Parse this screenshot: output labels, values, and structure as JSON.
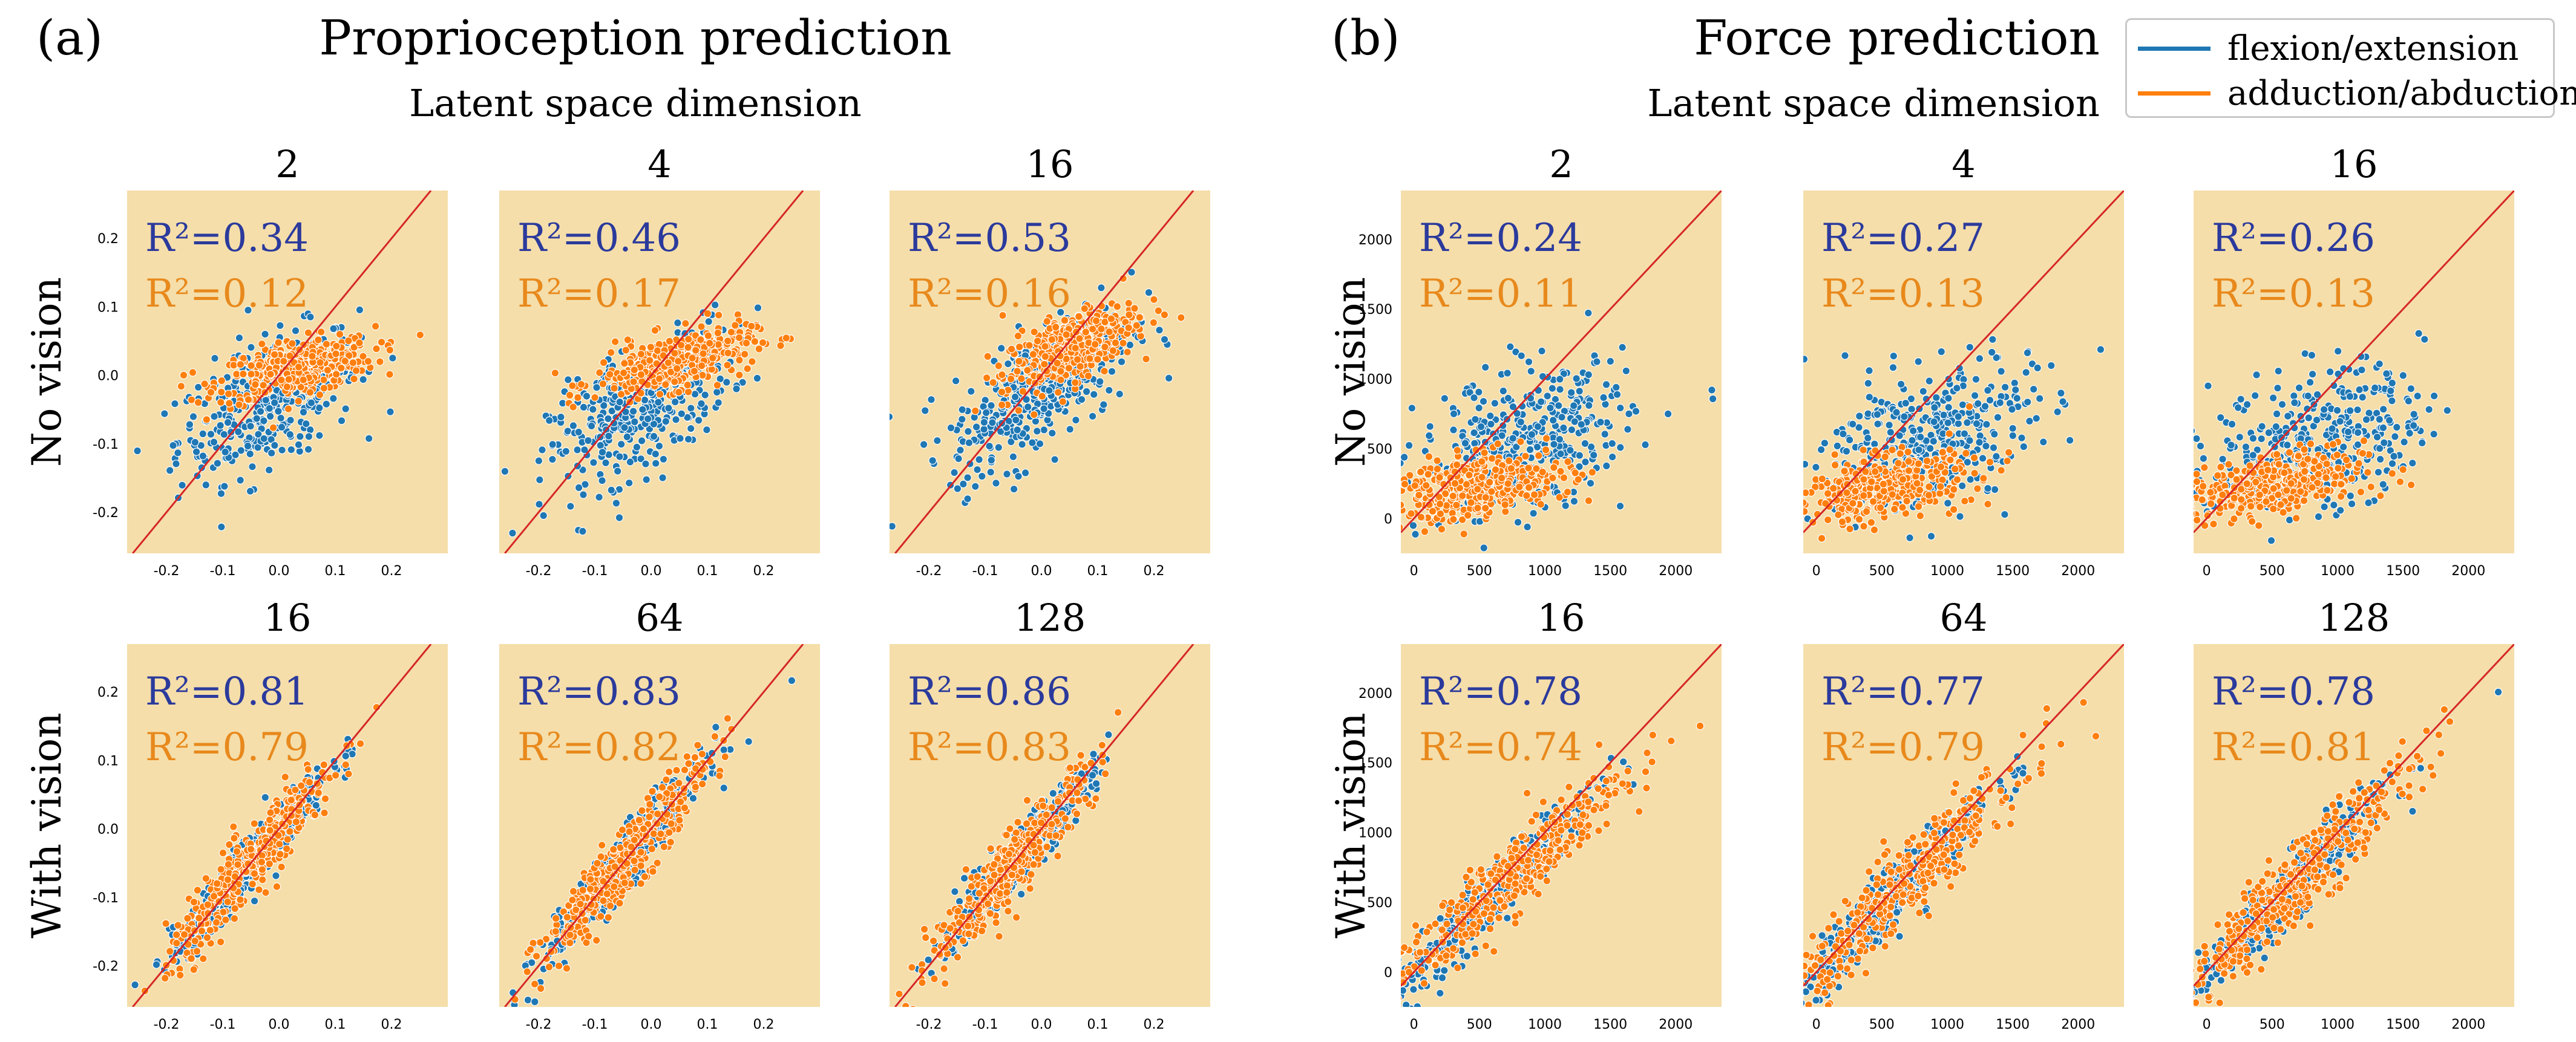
{
  "panels": [
    {
      "label": "(a)",
      "title": "Proprioception prediction",
      "subtitle": "Latent space dimension"
    },
    {
      "label": "(b)",
      "title": "Force prediction",
      "subtitle": "Latent space dimension"
    }
  ],
  "legend": {
    "items": [
      {
        "label": "flexion/extension",
        "color": "#1f77b4"
      },
      {
        "label": "adduction/abduction",
        "color": "#ff7f0e"
      }
    ]
  },
  "colors": {
    "background": "#f5deaa",
    "flexion": "#1f77b4",
    "adduction": "#ff7f0e",
    "identity_line": "#d62728",
    "r2_blue_text": "#2b3a9c",
    "r2_orange_text": "#e8891c"
  },
  "chart_data": [
    {
      "type": "scatter",
      "panel": "a",
      "row_label": "No vision",
      "latent_dim": "2",
      "xlim": [
        -0.27,
        0.3
      ],
      "ylim": [
        -0.26,
        0.27
      ],
      "xticks": [
        "-0.2",
        "-0.1",
        "0.0",
        "0.1",
        "0.2"
      ],
      "yticks": [
        "0.2",
        "0.1",
        "0.0",
        "-0.1",
        "-0.2"
      ],
      "r2": [
        "R²=0.34",
        "R²=0.12"
      ],
      "series": [
        {
          "name": "flexion/extension",
          "center": [
            -0.02,
            -0.04
          ],
          "spread": [
            0.08,
            0.045
          ],
          "slope": 0.35
        },
        {
          "name": "adduction/abduction",
          "center": [
            0.03,
            0.01
          ],
          "spread": [
            0.07,
            0.02
          ],
          "slope": 0.15
        }
      ]
    },
    {
      "type": "scatter",
      "panel": "a",
      "row_label": "No vision",
      "latent_dim": "4",
      "xlim": [
        -0.27,
        0.3
      ],
      "ylim": [
        -0.26,
        0.27
      ],
      "xticks": [
        "-0.2",
        "-0.1",
        "0.0",
        "0.1",
        "0.2"
      ],
      "yticks": [
        "0.2",
        "0.1",
        "0.0",
        "-0.1",
        "-0.2"
      ],
      "r2": [
        "R²=0.46",
        "R²=0.17"
      ],
      "series": [
        {
          "name": "flexion/extension",
          "center": [
            -0.02,
            -0.05
          ],
          "spread": [
            0.08,
            0.045
          ],
          "slope": 0.45
        },
        {
          "name": "adduction/abduction",
          "center": [
            0.04,
            0.02
          ],
          "spread": [
            0.07,
            0.02
          ],
          "slope": 0.2
        }
      ]
    },
    {
      "type": "scatter",
      "panel": "a",
      "row_label": "No vision",
      "latent_dim": "16",
      "xlim": [
        -0.27,
        0.3
      ],
      "ylim": [
        -0.26,
        0.27
      ],
      "xticks": [
        "-0.2",
        "-0.1",
        "0.0",
        "0.1",
        "0.2"
      ],
      "yticks": [
        "0.2",
        "0.1",
        "0.0",
        "-0.1",
        "-0.2"
      ],
      "r2": [
        "R²=0.53",
        "R²=0.16"
      ],
      "series": [
        {
          "name": "flexion/extension",
          "center": [
            0.0,
            -0.02
          ],
          "spread": [
            0.08,
            0.045
          ],
          "slope": 0.5
        },
        {
          "name": "adduction/abduction",
          "center": [
            0.05,
            0.04
          ],
          "spread": [
            0.06,
            0.025
          ],
          "slope": 0.35
        }
      ]
    },
    {
      "type": "scatter",
      "panel": "a",
      "row_label": "With vision",
      "latent_dim": "16",
      "xlim": [
        -0.27,
        0.3
      ],
      "ylim": [
        -0.26,
        0.27
      ],
      "xticks": [
        "-0.2",
        "-0.1",
        "0.0",
        "0.1",
        "0.2"
      ],
      "yticks": [
        "0.2",
        "0.1",
        "0.0",
        "-0.1",
        "-0.2"
      ],
      "r2": [
        "R²=0.81",
        "R²=0.79"
      ],
      "series": [
        {
          "name": "flexion/extension",
          "center": [
            -0.05,
            -0.05
          ],
          "spread": [
            0.07,
            0.02
          ],
          "slope": 0.95
        },
        {
          "name": "adduction/abduction",
          "center": [
            -0.05,
            -0.05
          ],
          "spread": [
            0.075,
            0.025
          ],
          "slope": 0.95
        }
      ]
    },
    {
      "type": "scatter",
      "panel": "a",
      "row_label": "With vision",
      "latent_dim": "64",
      "xlim": [
        -0.27,
        0.3
      ],
      "ylim": [
        -0.26,
        0.27
      ],
      "xticks": [
        "-0.2",
        "-0.1",
        "0.0",
        "0.1",
        "0.2"
      ],
      "yticks": [
        "0.2",
        "0.1",
        "0.0",
        "-0.1",
        "-0.2"
      ],
      "r2": [
        "R²=0.83",
        "R²=0.82"
      ],
      "series": [
        {
          "name": "flexion/extension",
          "center": [
            -0.05,
            -0.05
          ],
          "spread": [
            0.07,
            0.02
          ],
          "slope": 0.95
        },
        {
          "name": "adduction/abduction",
          "center": [
            -0.05,
            -0.05
          ],
          "spread": [
            0.075,
            0.025
          ],
          "slope": 0.95
        }
      ]
    },
    {
      "type": "scatter",
      "panel": "a",
      "row_label": "With vision",
      "latent_dim": "128",
      "xlim": [
        -0.27,
        0.3
      ],
      "ylim": [
        -0.26,
        0.27
      ],
      "xticks": [
        "-0.2",
        "-0.1",
        "0.0",
        "0.1",
        "0.2"
      ],
      "yticks": [
        "0.2",
        "0.1",
        "0.0",
        "-0.1",
        "-0.2"
      ],
      "r2": [
        "R²=0.86",
        "R²=0.83"
      ],
      "series": [
        {
          "name": "flexion/extension",
          "center": [
            -0.05,
            -0.05
          ],
          "spread": [
            0.07,
            0.02
          ],
          "slope": 0.95
        },
        {
          "name": "adduction/abduction",
          "center": [
            -0.05,
            -0.05
          ],
          "spread": [
            0.075,
            0.025
          ],
          "slope": 0.95
        }
      ]
    },
    {
      "type": "scatter",
      "panel": "b",
      "row_label": "No vision",
      "latent_dim": "2",
      "xlim": [
        -100,
        2350
      ],
      "ylim": [
        -250,
        2350
      ],
      "xticks": [
        "0",
        "500",
        "1000",
        "1500",
        "2000"
      ],
      "yticks": [
        "2000",
        "1500",
        "1000",
        "500",
        "0"
      ],
      "r2": [
        "R²=0.24",
        "R²=0.11"
      ],
      "series": [
        {
          "name": "flexion/extension",
          "center": [
            850,
            550
          ],
          "spread": [
            400,
            250
          ],
          "slope": 0.2
        },
        {
          "name": "adduction/abduction",
          "center": [
            500,
            230
          ],
          "spread": [
            350,
            110
          ],
          "slope": 0.15
        }
      ]
    },
    {
      "type": "scatter",
      "panel": "b",
      "row_label": "No vision",
      "latent_dim": "4",
      "xlim": [
        -100,
        2350
      ],
      "ylim": [
        -250,
        2350
      ],
      "xticks": [
        "0",
        "500",
        "1000",
        "1500",
        "2000"
      ],
      "yticks": [
        "2000",
        "1500",
        "1000",
        "500",
        "0"
      ],
      "r2": [
        "R²=0.27",
        "R²=0.13"
      ],
      "series": [
        {
          "name": "flexion/extension",
          "center": [
            850,
            580
          ],
          "spread": [
            400,
            250
          ],
          "slope": 0.25
        },
        {
          "name": "adduction/abduction",
          "center": [
            500,
            230
          ],
          "spread": [
            350,
            110
          ],
          "slope": 0.15
        }
      ]
    },
    {
      "type": "scatter",
      "panel": "b",
      "row_label": "No vision",
      "latent_dim": "16",
      "xlim": [
        -100,
        2350
      ],
      "ylim": [
        -250,
        2350
      ],
      "xticks": [
        "0",
        "500",
        "1000",
        "1500",
        "2000"
      ],
      "yticks": [
        "2000",
        "1500",
        "1000",
        "500",
        "0"
      ],
      "r2": [
        "R²=0.26",
        "R²=0.13"
      ],
      "series": [
        {
          "name": "flexion/extension",
          "center": [
            850,
            560
          ],
          "spread": [
            400,
            250
          ],
          "slope": 0.22
        },
        {
          "name": "adduction/abduction",
          "center": [
            500,
            230
          ],
          "spread": [
            350,
            110
          ],
          "slope": 0.15
        }
      ]
    },
    {
      "type": "scatter",
      "panel": "b",
      "row_label": "With vision",
      "latent_dim": "16",
      "xlim": [
        -100,
        2350
      ],
      "ylim": [
        -250,
        2350
      ],
      "xticks": [
        "0",
        "500",
        "1000",
        "1500",
        "2000"
      ],
      "yticks": [
        "2000",
        "1500",
        "1000",
        "500",
        "0"
      ],
      "r2": [
        "R²=0.78",
        "R²=0.74"
      ],
      "series": [
        {
          "name": "flexion/extension",
          "center": [
            600,
            560
          ],
          "spread": [
            380,
            110
          ],
          "slope": 0.95
        },
        {
          "name": "adduction/abduction",
          "center": [
            700,
            640
          ],
          "spread": [
            450,
            140
          ],
          "slope": 0.85
        }
      ]
    },
    {
      "type": "scatter",
      "panel": "b",
      "row_label": "With vision",
      "latent_dim": "64",
      "xlim": [
        -100,
        2350
      ],
      "ylim": [
        -250,
        2350
      ],
      "xticks": [
        "0",
        "500",
        "1000",
        "1500",
        "2000"
      ],
      "yticks": [
        "2000",
        "1500",
        "1000",
        "500",
        "0"
      ],
      "r2": [
        "R²=0.77",
        "R²=0.79"
      ],
      "series": [
        {
          "name": "flexion/extension",
          "center": [
            600,
            560
          ],
          "spread": [
            380,
            110
          ],
          "slope": 0.95
        },
        {
          "name": "adduction/abduction",
          "center": [
            700,
            640
          ],
          "spread": [
            450,
            140
          ],
          "slope": 0.9
        }
      ]
    },
    {
      "type": "scatter",
      "panel": "b",
      "row_label": "With vision",
      "latent_dim": "128",
      "xlim": [
        -100,
        2350
      ],
      "ylim": [
        -250,
        2350
      ],
      "xticks": [
        "0",
        "500",
        "1000",
        "1500",
        "2000"
      ],
      "yticks": [
        "2000",
        "1500",
        "1000",
        "500",
        "0"
      ],
      "r2": [
        "R²=0.78",
        "R²=0.81"
      ],
      "series": [
        {
          "name": "flexion/extension",
          "center": [
            600,
            560
          ],
          "spread": [
            380,
            110
          ],
          "slope": 0.95
        },
        {
          "name": "adduction/abduction",
          "center": [
            700,
            660
          ],
          "spread": [
            450,
            140
          ],
          "slope": 0.92
        }
      ]
    }
  ]
}
